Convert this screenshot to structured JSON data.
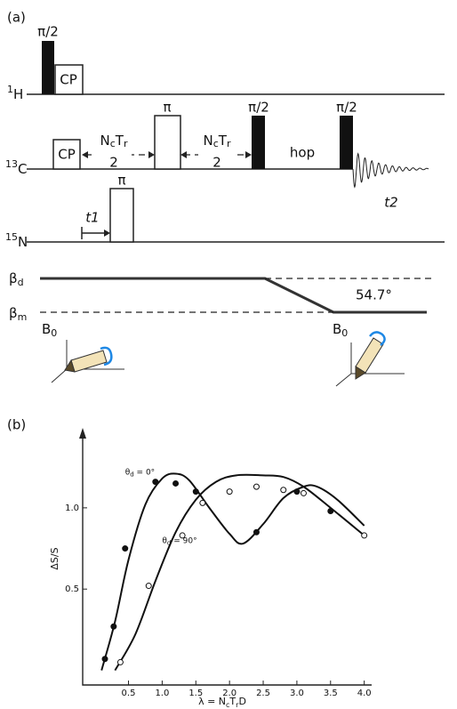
{
  "panel_a": {
    "label": "(a)",
    "pulse_90": "π/2",
    "pulse_180": "π",
    "cp": "CP",
    "channels": [
      {
        "mass": "1",
        "symbol": "H"
      },
      {
        "mass": "13",
        "symbol": "C"
      },
      {
        "mass": "15",
        "symbol": "N"
      }
    ],
    "delay": {
      "n": "N",
      "n_sub": "c",
      "t": "T",
      "t_sub": "r",
      "denominator": "2"
    },
    "hop": "hop",
    "t1": "t1",
    "t2": "t2",
    "beta_d": {
      "symbol": "β",
      "sub": "d"
    },
    "beta_m": {
      "symbol": "β",
      "sub": "m"
    },
    "angle": "54.7°",
    "field": {
      "symbol": "B",
      "sub": "0"
    }
  },
  "chart_data": {
    "type": "scatter",
    "panel_label": "(b)",
    "y_label": "ΔS/S",
    "x_label": {
      "lead": "λ = N",
      "n_sub": "c",
      "t": "T",
      "t_sub": "r",
      "tail": "D"
    },
    "xlim": [
      -0.18,
      4.11
    ],
    "ylim": [
      -0.09,
      1.47
    ],
    "xticks": [
      0.5,
      {
        "value": 1,
        "label": "1.0"
      },
      1.5,
      {
        "value": 2,
        "label": "2.0"
      },
      2.5,
      {
        "value": 3,
        "label": "3.0"
      },
      3.5,
      {
        "value": 4,
        "label": "4.0"
      }
    ],
    "yticks": [
      0.5,
      {
        "value": 1,
        "label": "1.0"
      }
    ],
    "series": [
      {
        "type": "line",
        "color": "#111",
        "x": [
          0.1,
          0.3,
          0.5,
          0.75,
          1.0,
          1.2,
          1.4,
          1.7,
          2.0,
          2.2,
          2.5,
          2.8,
          3.1,
          3.3,
          3.6,
          4.0
        ],
        "values": [
          0,
          0.3,
          0.68,
          1.02,
          1.18,
          1.21,
          1.17,
          1.0,
          0.84,
          0.78,
          0.9,
          1.06,
          1.13,
          1.13,
          1.05,
          0.89
        ]
      },
      {
        "type": "line",
        "color": "#111",
        "x": [
          0.3,
          0.6,
          0.9,
          1.2,
          1.5,
          1.8,
          2.1,
          2.5,
          2.8,
          3.1,
          3.5,
          4.0
        ],
        "values": [
          0,
          0.22,
          0.55,
          0.85,
          1.05,
          1.16,
          1.2,
          1.2,
          1.19,
          1.13,
          1.0,
          0.83
        ]
      },
      {
        "type": "scatter",
        "color": "#111",
        "marker_fill": "#111",
        "x": [
          0.15,
          0.28,
          0.45,
          0.9,
          1.2,
          1.5,
          2.4,
          3.0,
          3.5
        ],
        "values": [
          0.07,
          0.27,
          0.75,
          1.16,
          1.15,
          1.1,
          0.85,
          1.1,
          0.98
        ]
      },
      {
        "type": "scatter",
        "color": "#111",
        "marker_fill": "#fff",
        "x": [
          0.38,
          0.8,
          1.3,
          1.6,
          2.0,
          2.4,
          2.8,
          3.1,
          4.0
        ],
        "values": [
          0.05,
          0.52,
          0.83,
          1.03,
          1.1,
          1.13,
          1.11,
          1.09,
          0.83
        ]
      }
    ],
    "annotations": [
      {
        "symbol": "θ",
        "sub": "d",
        "text": " = 0°",
        "x": 0.45,
        "y": 1.22
      },
      {
        "symbol": "θ",
        "sub": "d",
        "text": " = 90°",
        "x": 1.0,
        "y": 0.8
      }
    ]
  }
}
